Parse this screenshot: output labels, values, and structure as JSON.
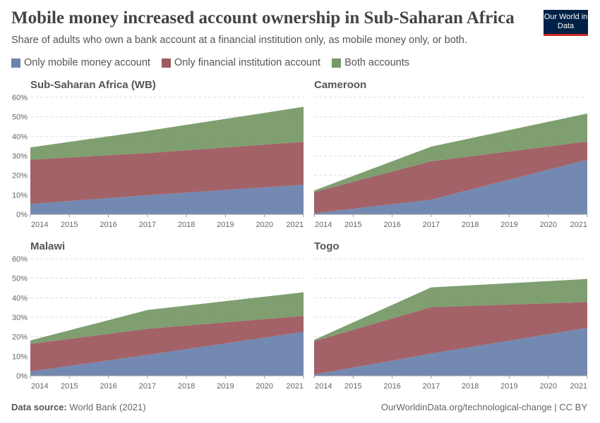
{
  "header": {
    "title": "Mobile money increased account ownership in Sub-Saharan Africa",
    "subtitle": "Share of adults who own a bank account at a financial institution only, as mobile money only, or both.",
    "logo": "Our World in Data"
  },
  "footer": {
    "source_label": "Data source:",
    "source": "World Bank (2021)",
    "credit": "OurWorldinData.org/technological-change | CC BY"
  },
  "colors": {
    "mobile": "#6d83ad",
    "financial": "#9e5a60",
    "both": "#789a68"
  },
  "chart_data": {
    "type": "area",
    "stacked": true,
    "grid": true,
    "legend_placement": "top-left",
    "legend": [
      "Only mobile money account",
      "Only financial institution account",
      "Both accounts"
    ],
    "ylim": [
      0,
      60
    ],
    "yticks": [
      "0%",
      "10%",
      "20%",
      "30%",
      "40%",
      "50%",
      "60%"
    ],
    "xticks": [
      "2014",
      "2015",
      "2016",
      "2017",
      "2018",
      "2019",
      "2020",
      "2021"
    ],
    "x": [
      2014,
      2017,
      2021
    ],
    "panels": [
      {
        "title": "Sub-Saharan Africa (WB)",
        "series": [
          {
            "name": "Only mobile money account",
            "values": [
              5.3,
              9.8,
              15.2
            ]
          },
          {
            "name": "Only financial institution account",
            "values": [
              22.7,
              21.6,
              22.0
            ]
          },
          {
            "name": "Both accounts",
            "values": [
              6.3,
              11.4,
              17.9
            ]
          }
        ]
      },
      {
        "title": "Cameroon",
        "series": [
          {
            "name": "Only mobile money account",
            "values": [
              0.6,
              7.5,
              28.0
            ]
          },
          {
            "name": "Only financial institution account",
            "values": [
              10.8,
              19.7,
              9.3
            ]
          },
          {
            "name": "Both accounts",
            "values": [
              0.8,
              7.5,
              14.4
            ]
          }
        ]
      },
      {
        "title": "Malawi",
        "series": [
          {
            "name": "Only mobile money account",
            "values": [
              2.2,
              10.7,
              22.5
            ]
          },
          {
            "name": "Only financial institution account",
            "values": [
              14.1,
              13.4,
              8.2
            ]
          },
          {
            "name": "Both accounts",
            "values": [
              1.8,
              9.6,
              12.1
            ]
          }
        ]
      },
      {
        "title": "Togo",
        "series": [
          {
            "name": "Only mobile money account",
            "values": [
              0.6,
              11.4,
              24.6
            ]
          },
          {
            "name": "Only financial institution account",
            "values": [
              17.1,
              23.8,
              13.2
            ]
          },
          {
            "name": "Both accounts",
            "values": [
              0.7,
              10.1,
              11.8
            ]
          }
        ]
      }
    ]
  }
}
